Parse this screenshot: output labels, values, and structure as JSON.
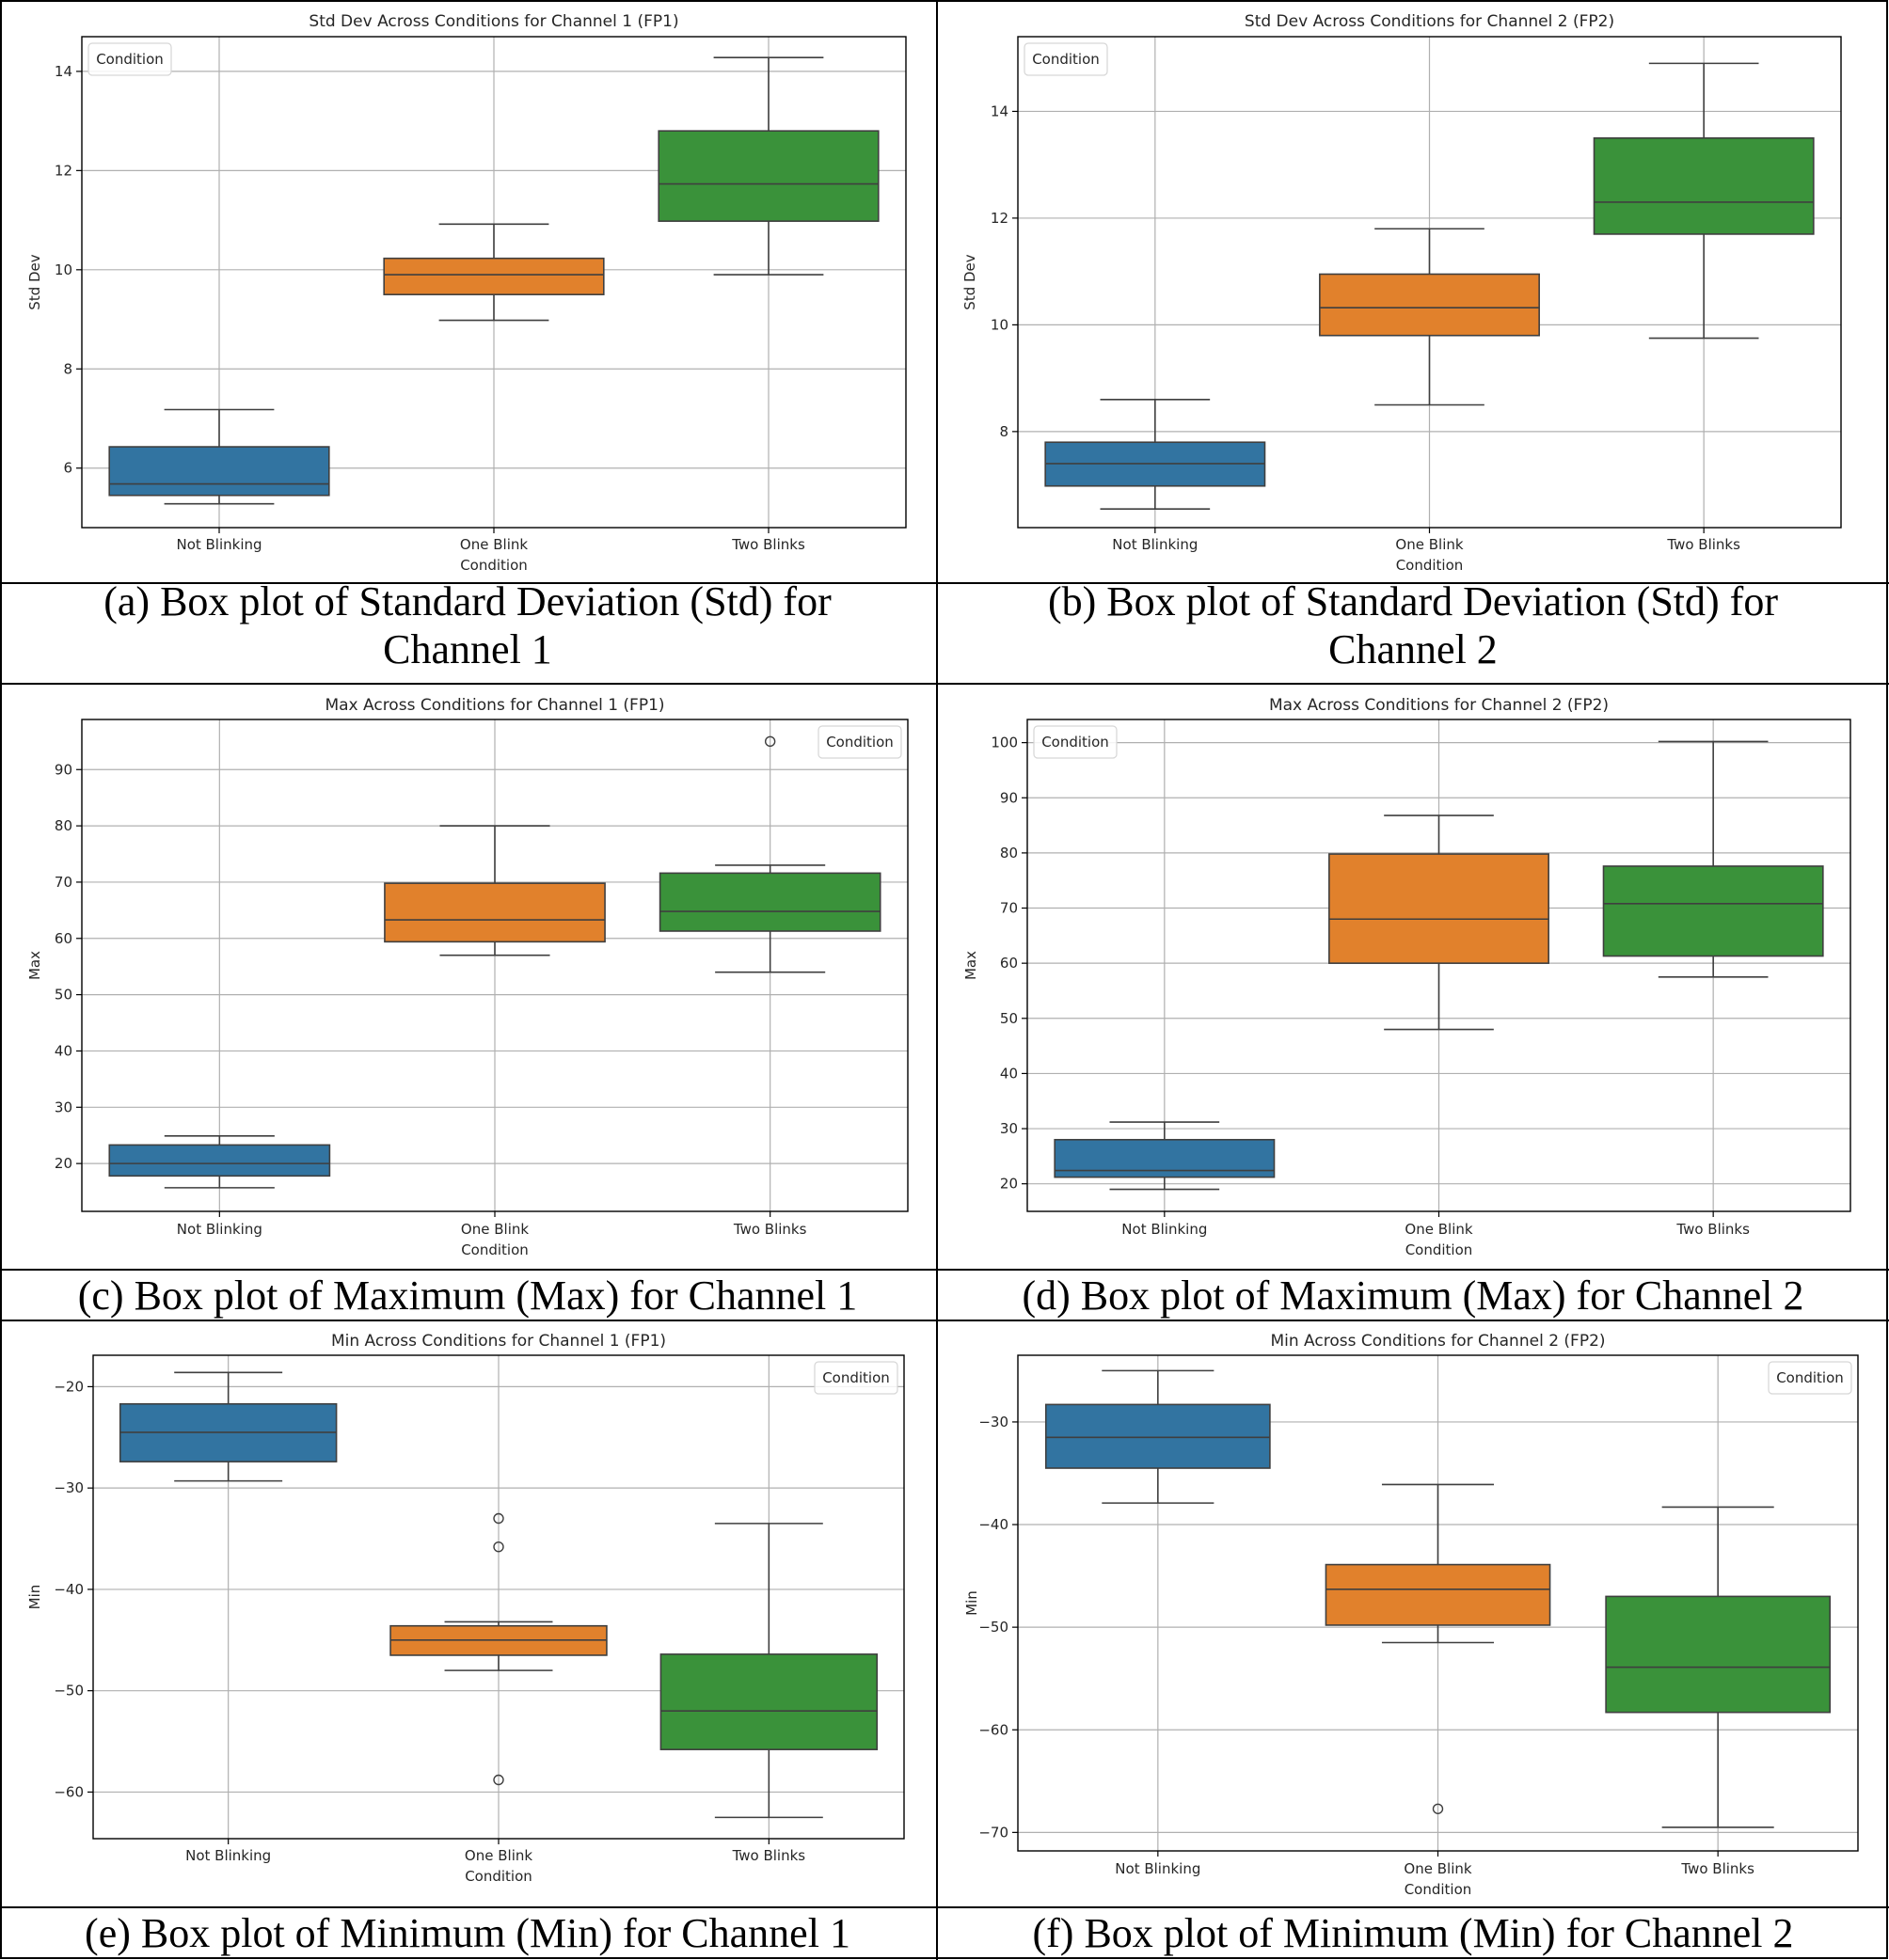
{
  "figure": {
    "panels": [
      {
        "caption": "(a) Box plot of Standard Deviation (Std) for Channel 1",
        "caption_lines": [
          "(a) Box plot of Standard Deviation (Std) for",
          "Channel 1"
        ]
      },
      {
        "caption": "(b) Box plot of Standard Deviation (Std) for Channel 2",
        "caption_lines": [
          "(b) Box plot of Standard Deviation (Std) for",
          "Channel 2"
        ]
      },
      {
        "caption": "(c) Box plot of Maximum (Max) for Channel 1",
        "caption_lines": [
          "(c) Box plot of Maximum (Max) for Channel 1"
        ]
      },
      {
        "caption": "(d) Box plot of Maximum (Max) for Channel 2",
        "caption_lines": [
          "(d) Box plot of Maximum (Max) for Channel 2"
        ]
      },
      {
        "caption": "(e) Box plot of Minimum (Min) for Channel 1",
        "caption_lines": [
          "(e) Box plot of Minimum (Min) for Channel 1"
        ]
      },
      {
        "caption": "(f) Box plot of Minimum (Min) for Channel 2",
        "caption_lines": [
          "(f) Box plot of Minimum (Min) for Channel 2"
        ]
      }
    ]
  },
  "chart_data": [
    {
      "type": "box",
      "title": "Std Dev Across Conditions for Channel 1 (FP1)",
      "xlabel": "Condition",
      "ylabel": "Std Dev",
      "legend_title": "Condition",
      "legend_position": "top-left",
      "grid": true,
      "categories": [
        "Not Blinking",
        "One Blink",
        "Two Blinks"
      ],
      "colors": [
        "#3274a1",
        "#e1812c",
        "#3a923a"
      ],
      "ylim": [
        4.8,
        14.7
      ],
      "yticks": [
        6,
        8,
        10,
        12,
        14
      ],
      "ytick_labels": [
        "6",
        "8",
        "10",
        "12",
        "14"
      ],
      "boxes": [
        {
          "category": "Not Blinking",
          "whisker_low": 5.28,
          "q1": 5.45,
          "median": 5.68,
          "q3": 6.43,
          "whisker_high": 7.18,
          "outliers": []
        },
        {
          "category": "One Blink",
          "whisker_low": 8.98,
          "q1": 9.5,
          "median": 9.9,
          "q3": 10.23,
          "whisker_high": 10.92,
          "outliers": []
        },
        {
          "category": "Two Blinks",
          "whisker_low": 9.9,
          "q1": 10.98,
          "median": 11.73,
          "q3": 12.8,
          "whisker_high": 14.28,
          "outliers": []
        }
      ]
    },
    {
      "type": "box",
      "title": "Std Dev Across Conditions for Channel 2 (FP2)",
      "xlabel": "Condition",
      "ylabel": "Std Dev",
      "legend_title": "Condition",
      "legend_position": "top-left",
      "grid": true,
      "categories": [
        "Not Blinking",
        "One Blink",
        "Two Blinks"
      ],
      "colors": [
        "#3274a1",
        "#e1812c",
        "#3a923a"
      ],
      "ylim": [
        6.2,
        15.4
      ],
      "yticks": [
        8,
        10,
        12,
        14
      ],
      "ytick_labels": [
        "8",
        "10",
        "12",
        "14"
      ],
      "boxes": [
        {
          "category": "Not Blinking",
          "whisker_low": 6.55,
          "q1": 6.98,
          "median": 7.4,
          "q3": 7.8,
          "whisker_high": 8.6,
          "outliers": []
        },
        {
          "category": "One Blink",
          "whisker_low": 8.5,
          "q1": 9.8,
          "median": 10.32,
          "q3": 10.95,
          "whisker_high": 11.8,
          "outliers": []
        },
        {
          "category": "Two Blinks",
          "whisker_low": 9.75,
          "q1": 11.7,
          "median": 12.3,
          "q3": 13.5,
          "whisker_high": 14.9,
          "outliers": []
        }
      ]
    },
    {
      "type": "box",
      "title": "Max Across Conditions for Channel 1 (FP1)",
      "xlabel": "Condition",
      "ylabel": "Max",
      "legend_title": "Condition",
      "legend_position": "top-right",
      "grid": true,
      "categories": [
        "Not Blinking",
        "One Blink",
        "Two Blinks"
      ],
      "colors": [
        "#3274a1",
        "#e1812c",
        "#3a923a"
      ],
      "ylim": [
        11.5,
        98.9
      ],
      "yticks": [
        20,
        30,
        40,
        50,
        60,
        70,
        80,
        90
      ],
      "ytick_labels": [
        "20",
        "30",
        "40",
        "50",
        "60",
        "70",
        "80",
        "90"
      ],
      "boxes": [
        {
          "category": "Not Blinking",
          "whisker_low": 15.7,
          "q1": 17.8,
          "median": 20.0,
          "q3": 23.3,
          "whisker_high": 24.9,
          "outliers": []
        },
        {
          "category": "One Blink",
          "whisker_low": 57.0,
          "q1": 59.4,
          "median": 63.3,
          "q3": 69.8,
          "whisker_high": 80.0,
          "outliers": []
        },
        {
          "category": "Two Blinks",
          "whisker_low": 54.0,
          "q1": 61.3,
          "median": 64.8,
          "q3": 71.6,
          "whisker_high": 73.0,
          "outliers": [
            95.0
          ]
        }
      ]
    },
    {
      "type": "box",
      "title": "Max Across Conditions for Channel 2 (FP2)",
      "xlabel": "Condition",
      "ylabel": "Max",
      "legend_title": "Condition",
      "legend_position": "top-left",
      "grid": true,
      "categories": [
        "Not Blinking",
        "One Blink",
        "Two Blinks"
      ],
      "colors": [
        "#3274a1",
        "#e1812c",
        "#3a923a"
      ],
      "ylim": [
        15.0,
        104.2
      ],
      "yticks": [
        20,
        30,
        40,
        50,
        60,
        70,
        80,
        90,
        100
      ],
      "ytick_labels": [
        "20",
        "30",
        "40",
        "50",
        "60",
        "70",
        "80",
        "90",
        "100"
      ],
      "boxes": [
        {
          "category": "Not Blinking",
          "whisker_low": 19.0,
          "q1": 21.2,
          "median": 22.4,
          "q3": 28.0,
          "whisker_high": 31.2,
          "outliers": []
        },
        {
          "category": "One Blink",
          "whisker_low": 48.0,
          "q1": 60.0,
          "median": 68.0,
          "q3": 79.8,
          "whisker_high": 86.8,
          "outliers": []
        },
        {
          "category": "Two Blinks",
          "whisker_low": 57.5,
          "q1": 61.3,
          "median": 70.8,
          "q3": 77.6,
          "whisker_high": 100.2,
          "outliers": []
        }
      ]
    },
    {
      "type": "box",
      "title": "Min Across Conditions for Channel 1 (FP1)",
      "xlabel": "Condition",
      "ylabel": "Min",
      "legend_title": "Condition",
      "legend_position": "top-right",
      "grid": true,
      "categories": [
        "Not Blinking",
        "One Blink",
        "Two Blinks"
      ],
      "colors": [
        "#3274a1",
        "#e1812c",
        "#3a923a"
      ],
      "ylim": [
        -64.6,
        -16.9
      ],
      "yticks": [
        -60,
        -50,
        -40,
        -30,
        -20
      ],
      "ytick_labels": [
        "−60",
        "−50",
        "−40",
        "−30",
        "−20"
      ],
      "boxes": [
        {
          "category": "Not Blinking",
          "whisker_low": -29.3,
          "q1": -27.4,
          "median": -24.5,
          "q3": -21.7,
          "whisker_high": -18.6,
          "outliers": []
        },
        {
          "category": "One Blink",
          "whisker_low": -48.0,
          "q1": -46.5,
          "median": -45.0,
          "q3": -43.6,
          "whisker_high": -43.2,
          "outliers": [
            -33.0,
            -35.8,
            -58.8
          ]
        },
        {
          "category": "Two Blinks",
          "whisker_low": -62.5,
          "q1": -55.8,
          "median": -52.0,
          "q3": -46.4,
          "whisker_high": -33.5,
          "outliers": []
        }
      ]
    },
    {
      "type": "box",
      "title": "Min Across Conditions for Channel 2 (FP2)",
      "xlabel": "Condition",
      "ylabel": "Min",
      "legend_title": "Condition",
      "legend_position": "top-right",
      "grid": true,
      "categories": [
        "Not Blinking",
        "One Blink",
        "Two Blinks"
      ],
      "colors": [
        "#3274a1",
        "#e1812c",
        "#3a923a"
      ],
      "ylim": [
        -71.8,
        -23.5
      ],
      "yticks": [
        -70,
        -60,
        -50,
        -40,
        -30
      ],
      "ytick_labels": [
        "−70",
        "−60",
        "−50",
        "−40",
        "−30"
      ],
      "boxes": [
        {
          "category": "Not Blinking",
          "whisker_low": -37.9,
          "q1": -34.5,
          "median": -31.5,
          "q3": -28.3,
          "whisker_high": -25.0,
          "outliers": []
        },
        {
          "category": "One Blink",
          "whisker_low": -51.5,
          "q1": -49.8,
          "median": -46.3,
          "q3": -43.9,
          "whisker_high": -36.1,
          "outliers": [
            -67.7
          ]
        },
        {
          "category": "Two Blinks",
          "whisker_low": -69.5,
          "q1": -58.3,
          "median": -53.9,
          "q3": -47.0,
          "whisker_high": -38.3,
          "outliers": []
        }
      ]
    }
  ]
}
